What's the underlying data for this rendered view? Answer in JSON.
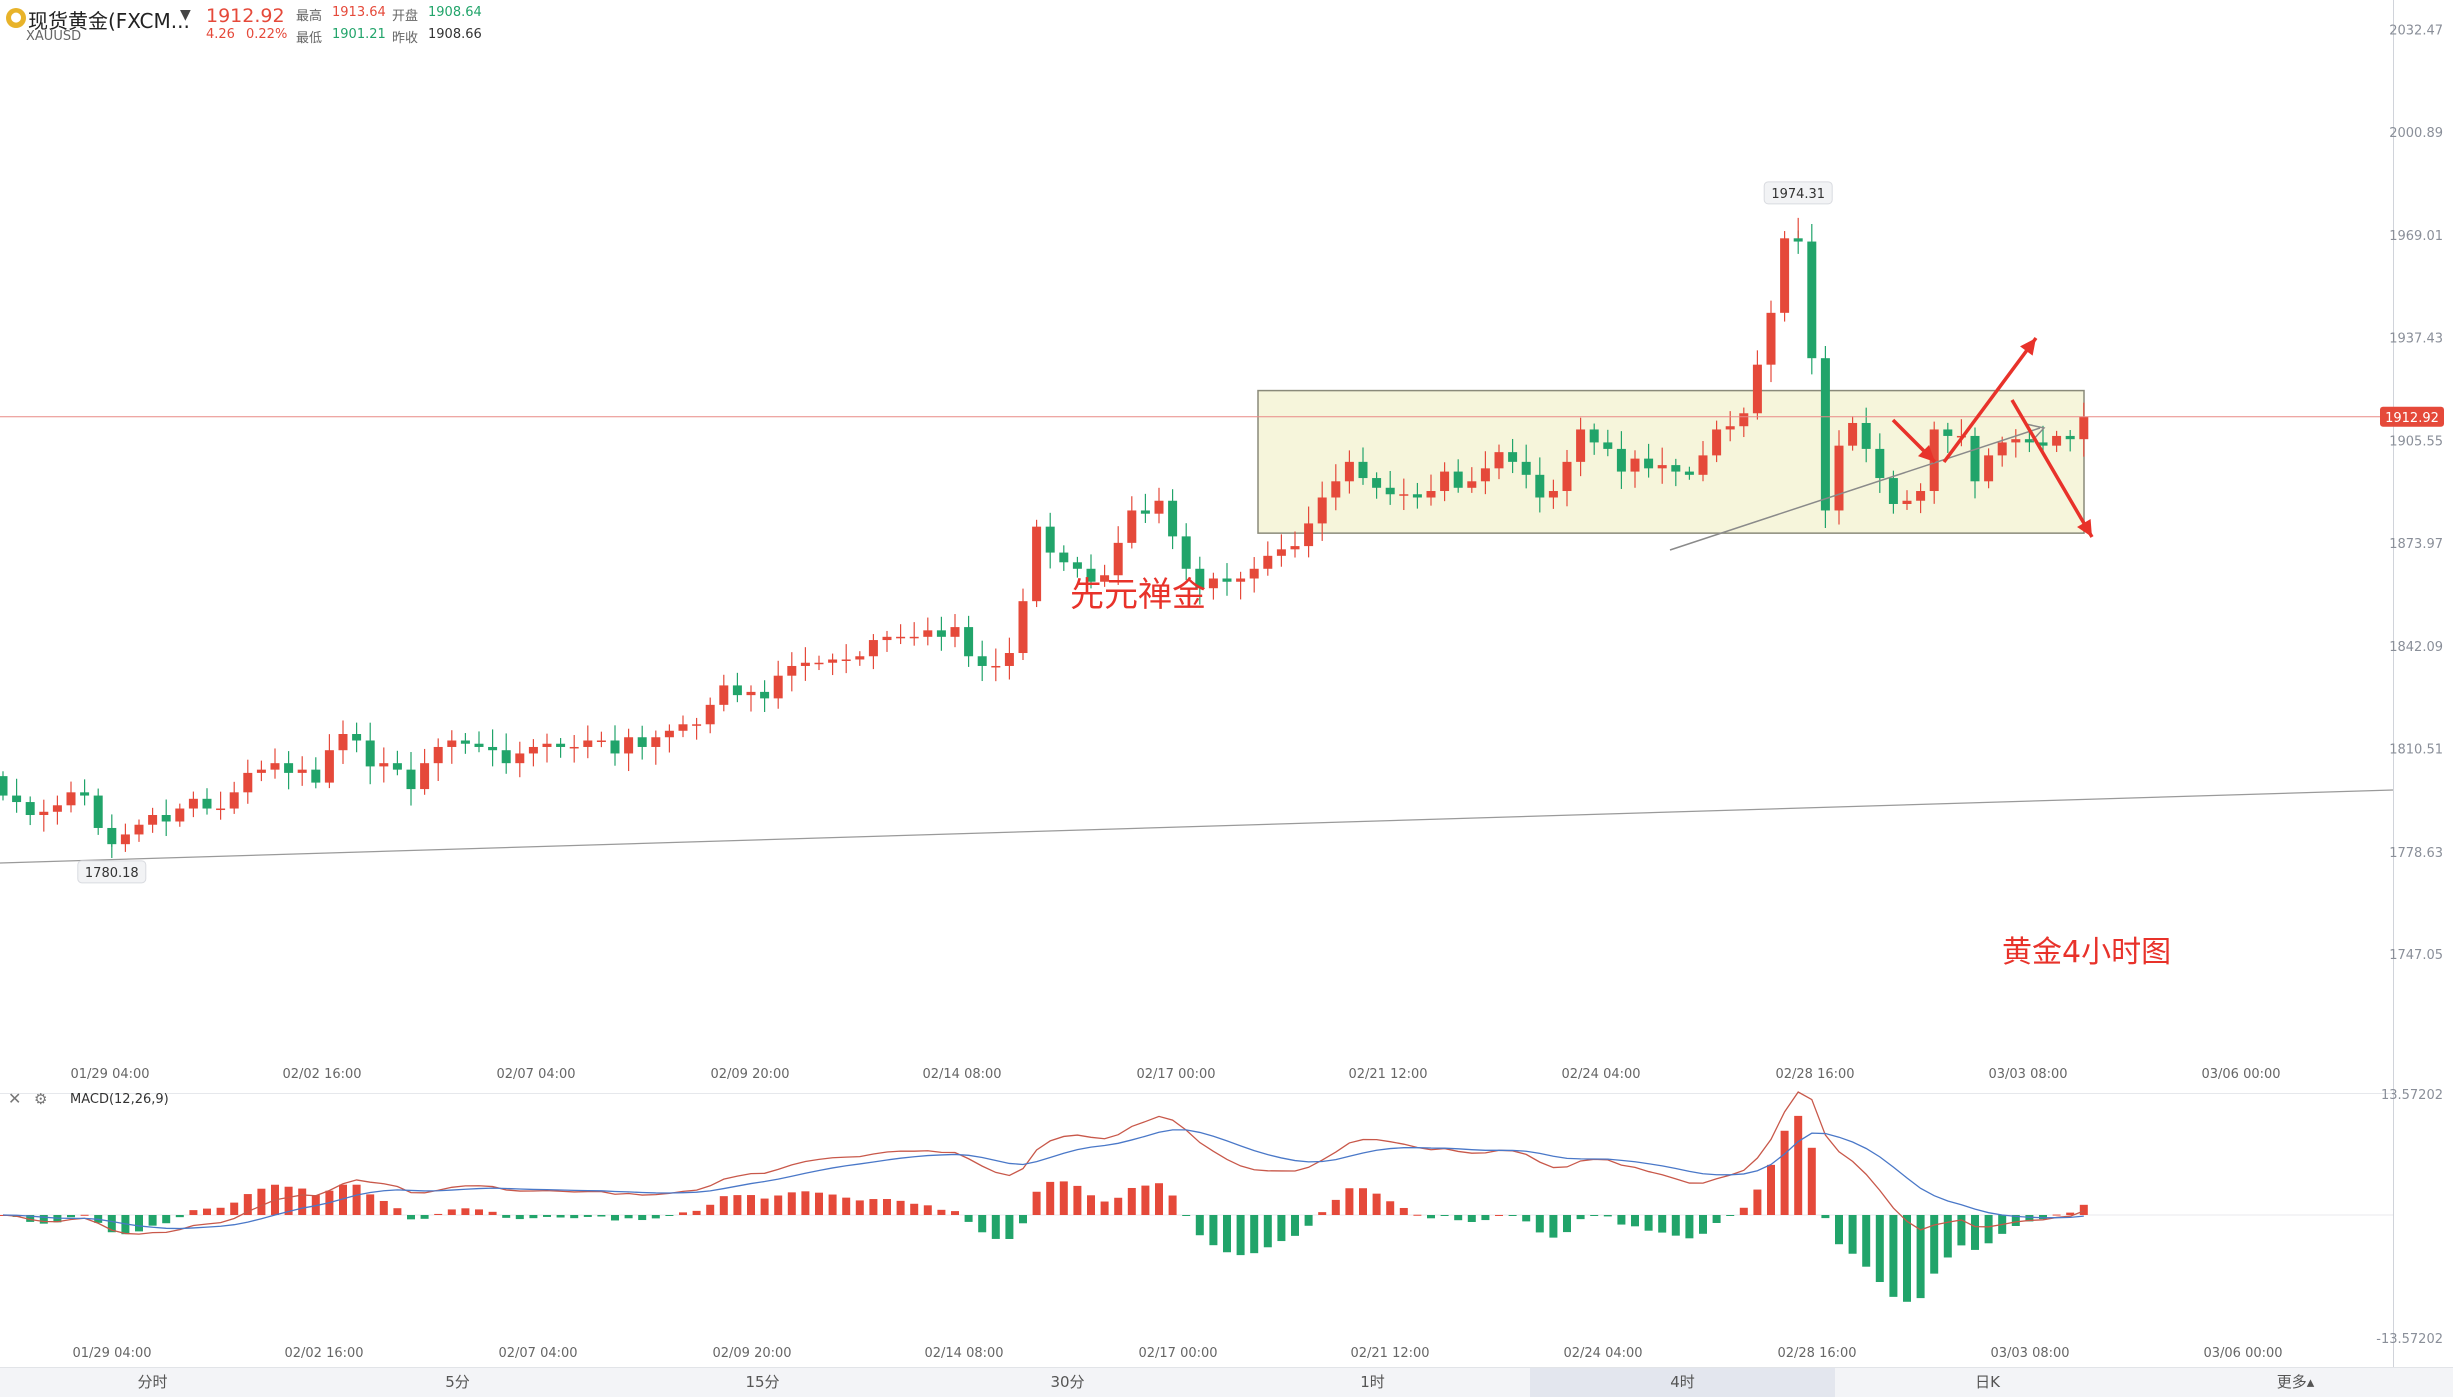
{
  "header": {
    "coin_icon": "gold-coin-icon",
    "instrument_name": "现货黄金(FXCM...",
    "symbol": "XAUUSD",
    "price": "1912.92",
    "change": "4.26",
    "change_pct": "0.22%",
    "stats": [
      {
        "label": "最高",
        "value": "1913.64",
        "tone": "red"
      },
      {
        "label": "开盘",
        "value": "1908.64",
        "tone": "green"
      },
      {
        "label": "最低",
        "value": "1901.21",
        "tone": "green"
      },
      {
        "label": "昨收",
        "value": "1908.66",
        "tone": "grey"
      }
    ]
  },
  "annotations": {
    "watermark": "先元禅金",
    "chart_note": "黄金4小时图"
  },
  "chart_data": {
    "type": "candlestick",
    "y_axis": {
      "ticks": [
        "2032.47",
        "2000.89",
        "1969.01",
        "1937.43",
        "1905.55",
        "1873.97",
        "1842.09",
        "1810.51",
        "1778.63",
        "1747.05"
      ],
      "range": [
        1740,
        2036
      ]
    },
    "x_ticks": [
      "01/29 04:00",
      "02/02 16:00",
      "02/07 04:00",
      "02/09 20:00",
      "02/14 08:00",
      "02/17 00:00",
      "02/21 12:00",
      "02/24 04:00",
      "02/28 16:00",
      "03/03 08:00",
      "03/06 00:00"
    ],
    "current_price_label": "1912.92",
    "current_price": 1912.92,
    "high_marker": "1974.31",
    "high_value": 1974.31,
    "low_marker": "1780.18",
    "low_value": 1780.18,
    "consolidation_box": {
      "top": 1921,
      "bottom": 1877
    },
    "closes": [
      1796,
      1794,
      1790,
      1791,
      1793,
      1797,
      1796,
      1786,
      1781,
      1784,
      1787,
      1790,
      1788,
      1792,
      1795,
      1792,
      1792,
      1797,
      1803,
      1804,
      1806,
      1803,
      1804,
      1800,
      1810,
      1815,
      1813,
      1805,
      1806,
      1804,
      1798,
      1806,
      1811,
      1813,
      1812,
      1811,
      1810,
      1806,
      1809,
      1811,
      1812,
      1811,
      1811,
      1813,
      1813,
      1809,
      1814,
      1811,
      1814,
      1816,
      1818,
      1818,
      1824,
      1830,
      1827,
      1828,
      1826,
      1833,
      1836,
      1837,
      1837,
      1838,
      1838,
      1839,
      1844,
      1845,
      1845,
      1845,
      1847,
      1845,
      1848,
      1839,
      1836,
      1836,
      1840,
      1856,
      1879,
      1871,
      1868,
      1866,
      1862,
      1864,
      1874,
      1884,
      1883,
      1887,
      1876,
      1866,
      1860,
      1863,
      1862,
      1863,
      1866,
      1870,
      1872,
      1873,
      1880,
      1888,
      1893,
      1899,
      1894,
      1891,
      1889,
      1889,
      1888,
      1890,
      1896,
      1891,
      1893,
      1897,
      1902,
      1899,
      1895,
      1888,
      1890,
      1899,
      1909,
      1905,
      1903,
      1896,
      1900,
      1897,
      1898,
      1896,
      1895,
      1901,
      1909,
      1910,
      1914,
      1929,
      1945,
      1968,
      1967,
      1931,
      1884,
      1904,
      1911,
      1903,
      1894,
      1886,
      1887,
      1890,
      1909,
      1907,
      1907,
      1893,
      1901,
      1905,
      1906,
      1905,
      1904,
      1907,
      1906,
      1912.92
    ],
    "macd": {
      "label": "MACD(12,26,9)",
      "axis_top": "13.57202",
      "axis_bottom": "-13.57202",
      "range": [
        -13.57202,
        13.57202
      ]
    }
  },
  "timeframe_tabs": [
    {
      "label": "分时",
      "active": false
    },
    {
      "label": "5分",
      "active": false
    },
    {
      "label": "15分",
      "active": false
    },
    {
      "label": "30分",
      "active": false
    },
    {
      "label": "1时",
      "active": false
    },
    {
      "label": "4时",
      "active": true
    },
    {
      "label": "日K",
      "active": false
    },
    {
      "label": "更多▴",
      "active": false
    }
  ],
  "colors": {
    "up": "#e5493a",
    "down": "#21a46a",
    "annotation_red": "#e8322a",
    "box_fill": "#f4f3d5",
    "box_stroke": "#8a8a7a",
    "macd_fast": "#4a78c8",
    "macd_slow": "#c8584a",
    "price_line": "#e88a86"
  }
}
